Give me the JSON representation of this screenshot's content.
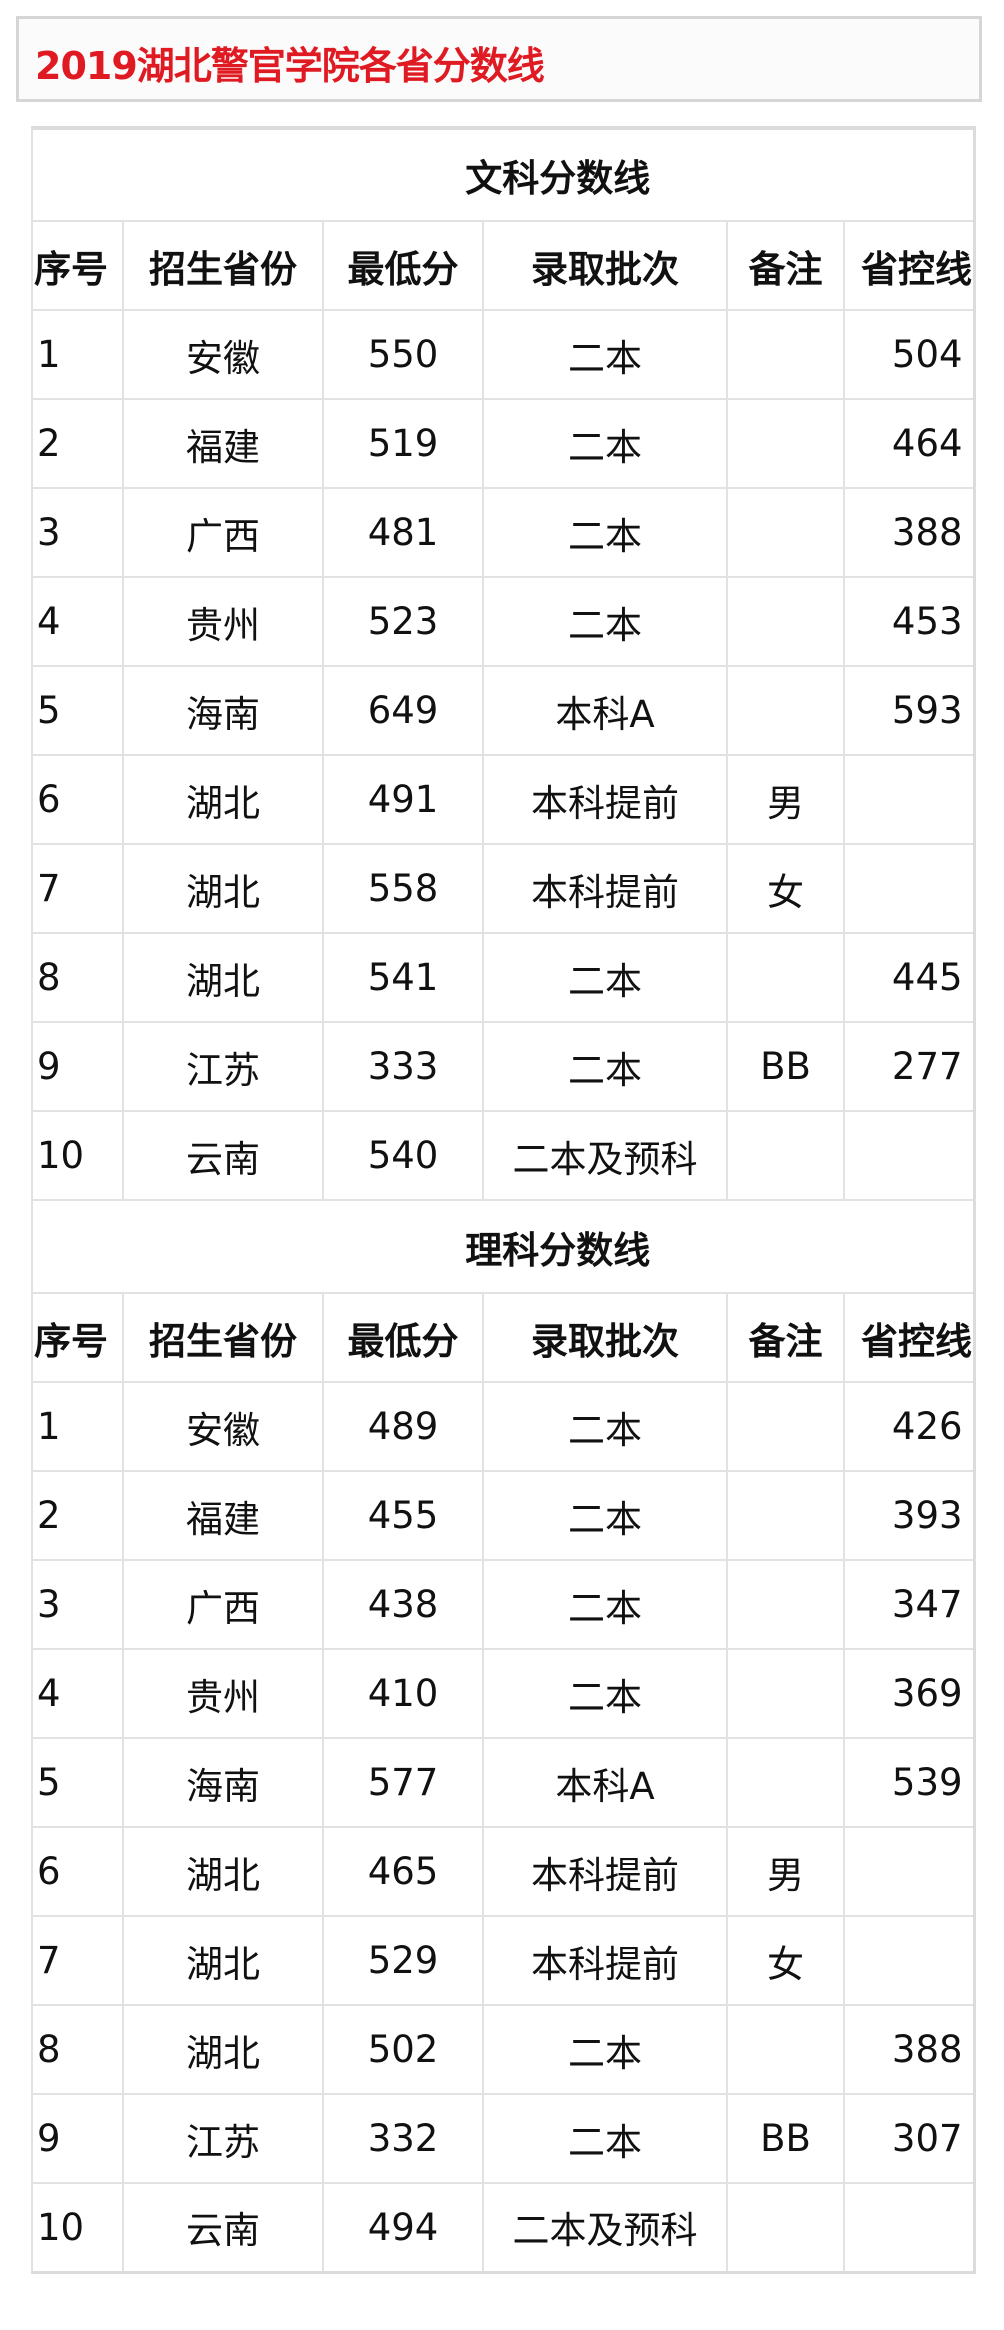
{
  "title": "2019湖北警官学院各省分数线",
  "columns": [
    "序号",
    "招生省份",
    "最低分",
    "录取批次",
    "备注",
    "省控线"
  ],
  "sections": [
    {
      "heading": "文科分数线",
      "rows": [
        [
          "1",
          "安徽",
          "550",
          "二本",
          "",
          "504"
        ],
        [
          "2",
          "福建",
          "519",
          "二本",
          "",
          "464"
        ],
        [
          "3",
          "广西",
          "481",
          "二本",
          "",
          "388"
        ],
        [
          "4",
          "贵州",
          "523",
          "二本",
          "",
          "453"
        ],
        [
          "5",
          "海南",
          "649",
          "本科A",
          "",
          "593"
        ],
        [
          "6",
          "湖北",
          "491",
          "本科提前",
          "男",
          ""
        ],
        [
          "7",
          "湖北",
          "558",
          "本科提前",
          "女",
          ""
        ],
        [
          "8",
          "湖北",
          "541",
          "二本",
          "",
          "445"
        ],
        [
          "9",
          "江苏",
          "333",
          "二本",
          "BB",
          "277"
        ],
        [
          "10",
          "云南",
          "540",
          "二本及预科",
          "",
          ""
        ]
      ]
    },
    {
      "heading": "理科分数线",
      "rows": [
        [
          "1",
          "安徽",
          "489",
          "二本",
          "",
          "426"
        ],
        [
          "2",
          "福建",
          "455",
          "二本",
          "",
          "393"
        ],
        [
          "3",
          "广西",
          "438",
          "二本",
          "",
          "347"
        ],
        [
          "4",
          "贵州",
          "410",
          "二本",
          "",
          "369"
        ],
        [
          "5",
          "海南",
          "577",
          "本科A",
          "",
          "539"
        ],
        [
          "6",
          "湖北",
          "465",
          "本科提前",
          "男",
          ""
        ],
        [
          "7",
          "湖北",
          "529",
          "本科提前",
          "女",
          ""
        ],
        [
          "8",
          "湖北",
          "502",
          "二本",
          "",
          "388"
        ],
        [
          "9",
          "江苏",
          "332",
          "二本",
          "BB",
          "307"
        ],
        [
          "10",
          "云南",
          "494",
          "二本及预科",
          "",
          ""
        ]
      ]
    }
  ],
  "colors": {
    "title": "#e01a22",
    "border": "#e2e2e2"
  }
}
